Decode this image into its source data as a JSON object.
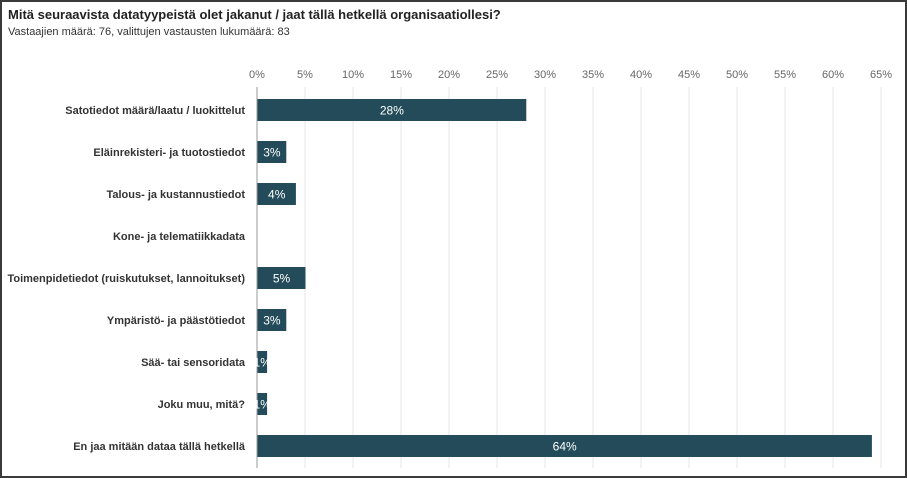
{
  "chart_data": {
    "type": "bar",
    "orientation": "horizontal",
    "title": "Mitä seuraavista datatyypeistä olet jakanut / jaat tällä hetkellä organisaatiollesi?",
    "subtitle": "Vastaajien määrä: 76, valittujen vastausten lukumäärä: 83",
    "categories": [
      "Satotiedot määrä/laatu / luokittelut",
      "Eläinrekisteri- ja tuotostiedot",
      "Talous- ja kustannustiedot",
      "Kone- ja telematiikkadata",
      "Toimenpidetiedot (ruiskutukset, lannoitukset)",
      "Ympäristö- ja päästötiedot",
      "Sää- tai sensoridata",
      "Joku muu, mitä?",
      "En jaa mitään dataa tällä hetkellä"
    ],
    "values": [
      28,
      3,
      4,
      0,
      5,
      3,
      1,
      1,
      64
    ],
    "data_labels": [
      "28%",
      "3%",
      "4%",
      "",
      "5%",
      "3%",
      "1%",
      "1%",
      "64%"
    ],
    "xlim": [
      0,
      65
    ],
    "x_ticks": [
      0,
      5,
      10,
      15,
      20,
      25,
      30,
      35,
      40,
      45,
      50,
      55,
      60,
      65
    ],
    "x_tick_labels": [
      "0%",
      "5%",
      "10%",
      "15%",
      "20%",
      "25%",
      "30%",
      "35%",
      "40%",
      "45%",
      "50%",
      "55%",
      "60%",
      "65%"
    ],
    "axis_position": "top",
    "grid": true,
    "legend": "none",
    "colors": {
      "bar": "#234b5a",
      "grid": "#e6e6e6",
      "axis": "#999999",
      "bar_label": "#ffffff"
    }
  }
}
